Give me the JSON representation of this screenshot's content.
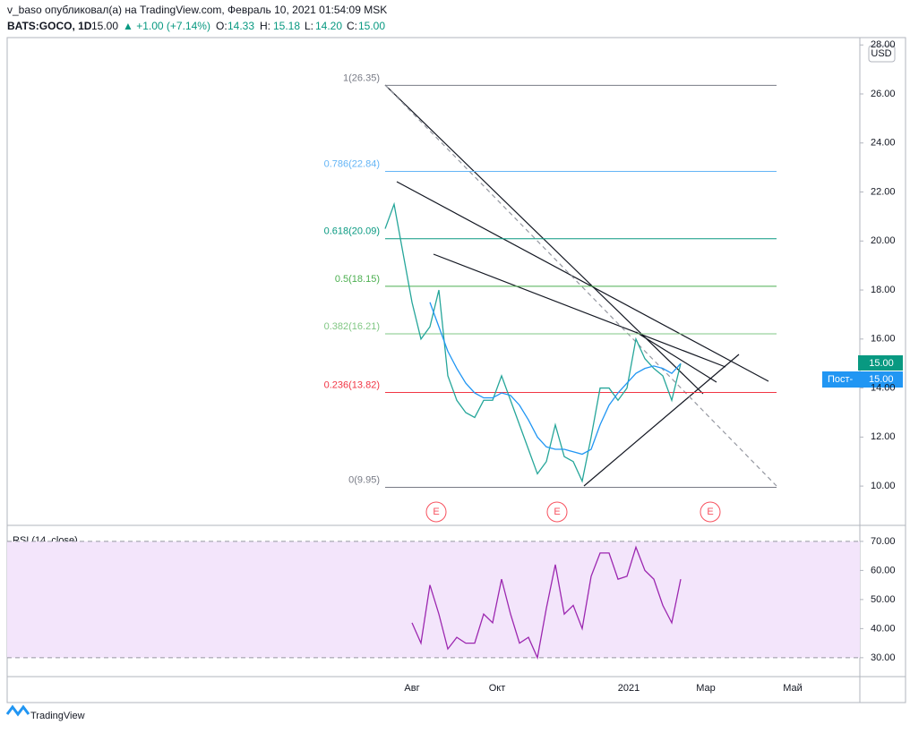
{
  "header": {
    "publisher": "v_baso опубликовал(а) на TradingView.com, Февраль 10, 2021 01:54:09 MSK",
    "symbol": "BATS:GOCO, 1D",
    "last": "15.00",
    "change": "▲ +1.00 (+7.14%)",
    "o_label": "O:",
    "o": "14.33",
    "h_label": "H:",
    "h": "15.18",
    "l_label": "L:",
    "l": "14.20",
    "c_label": "C:",
    "c": "15.00"
  },
  "currency": "USD",
  "price_badge": "15.00",
  "post_badge": "Пост-",
  "post_value": "15.00",
  "earnings_marker": "E",
  "brand": "TradingView",
  "x_labels": [
    "Авг",
    "Окт",
    "2021",
    "Мар",
    "Май"
  ],
  "chart_data": [
    {
      "type": "line",
      "ylim": [
        8.47,
        28.3
      ],
      "yticks": [
        {
          "value": 10,
          "label": "10.00"
        },
        {
          "value": 12,
          "label": "12.00"
        },
        {
          "value": 14,
          "label": "14.00"
        },
        {
          "value": 16,
          "label": "16.00"
        },
        {
          "value": 18,
          "label": "18.00"
        },
        {
          "value": 20,
          "label": "20.00"
        },
        {
          "value": 22,
          "label": "22.00"
        },
        {
          "value": 24,
          "label": "24.00"
        },
        {
          "value": 26,
          "label": "26.00"
        },
        {
          "value": 28,
          "label": "28.00"
        }
      ],
      "series": [
        {
          "color": "#26a69a",
          "values": [
            20.5,
            21.5,
            19.5,
            17.5,
            16.0,
            16.5,
            18.0,
            14.5,
            13.5,
            13.0,
            12.8,
            13.5,
            13.5,
            14.5,
            13.5,
            12.5,
            11.5,
            10.5,
            11.0,
            12.5,
            11.2,
            11.0,
            10.2,
            12.0,
            14.0,
            14.0,
            13.5,
            14.0,
            16.0,
            15.2,
            14.8,
            14.5,
            13.5,
            15.0
          ]
        },
        {
          "color": "#2196f3",
          "values": [
            null,
            null,
            null,
            null,
            null,
            17.5,
            16.5,
            15.5,
            14.8,
            14.2,
            13.8,
            13.6,
            13.6,
            13.8,
            13.7,
            13.3,
            12.7,
            12.0,
            11.6,
            11.5,
            11.5,
            11.4,
            11.3,
            11.5,
            12.5,
            13.3,
            13.8,
            14.2,
            14.6,
            14.8,
            14.9,
            14.8,
            14.6,
            15.0
          ]
        }
      ],
      "levels": [
        {
          "label": "1(26.35)",
          "value": 26.35,
          "color": "#787b86"
        },
        {
          "label": "0.786(22.84)",
          "value": 22.84,
          "color": "#64b5f6"
        },
        {
          "label": "0.618(20.09)",
          "value": 20.09,
          "color": "#089981"
        },
        {
          "label": "0.5(18.15)",
          "value": 18.15,
          "color": "#4caf50"
        },
        {
          "label": "0.382(16.21)",
          "value": 16.21,
          "color": "#81c784"
        },
        {
          "label": "0.236(13.82)",
          "value": 13.82,
          "color": "#f23645"
        },
        {
          "label": "0(9.95)",
          "value": 9.95,
          "color": "#787b86"
        }
      ]
    },
    {
      "type": "line",
      "title": "RSI (14, close)",
      "ylim": [
        23.8,
        75.2
      ],
      "band": [
        30,
        70
      ],
      "yticks": [
        {
          "value": 30,
          "label": "30.00"
        },
        {
          "value": 40,
          "label": "40.00"
        },
        {
          "value": 50,
          "label": "50.00"
        },
        {
          "value": 60,
          "label": "60.00"
        },
        {
          "value": 70,
          "label": "70.00"
        }
      ],
      "series": [
        {
          "color": "#9c27b0",
          "values": [
            null,
            null,
            null,
            42,
            35,
            55,
            45,
            33,
            37,
            35,
            35,
            45,
            42,
            57,
            45,
            35,
            37,
            30,
            47,
            62,
            45,
            48,
            40,
            58,
            66,
            66,
            57,
            58,
            68,
            60,
            57,
            48,
            42,
            57
          ]
        }
      ]
    }
  ]
}
